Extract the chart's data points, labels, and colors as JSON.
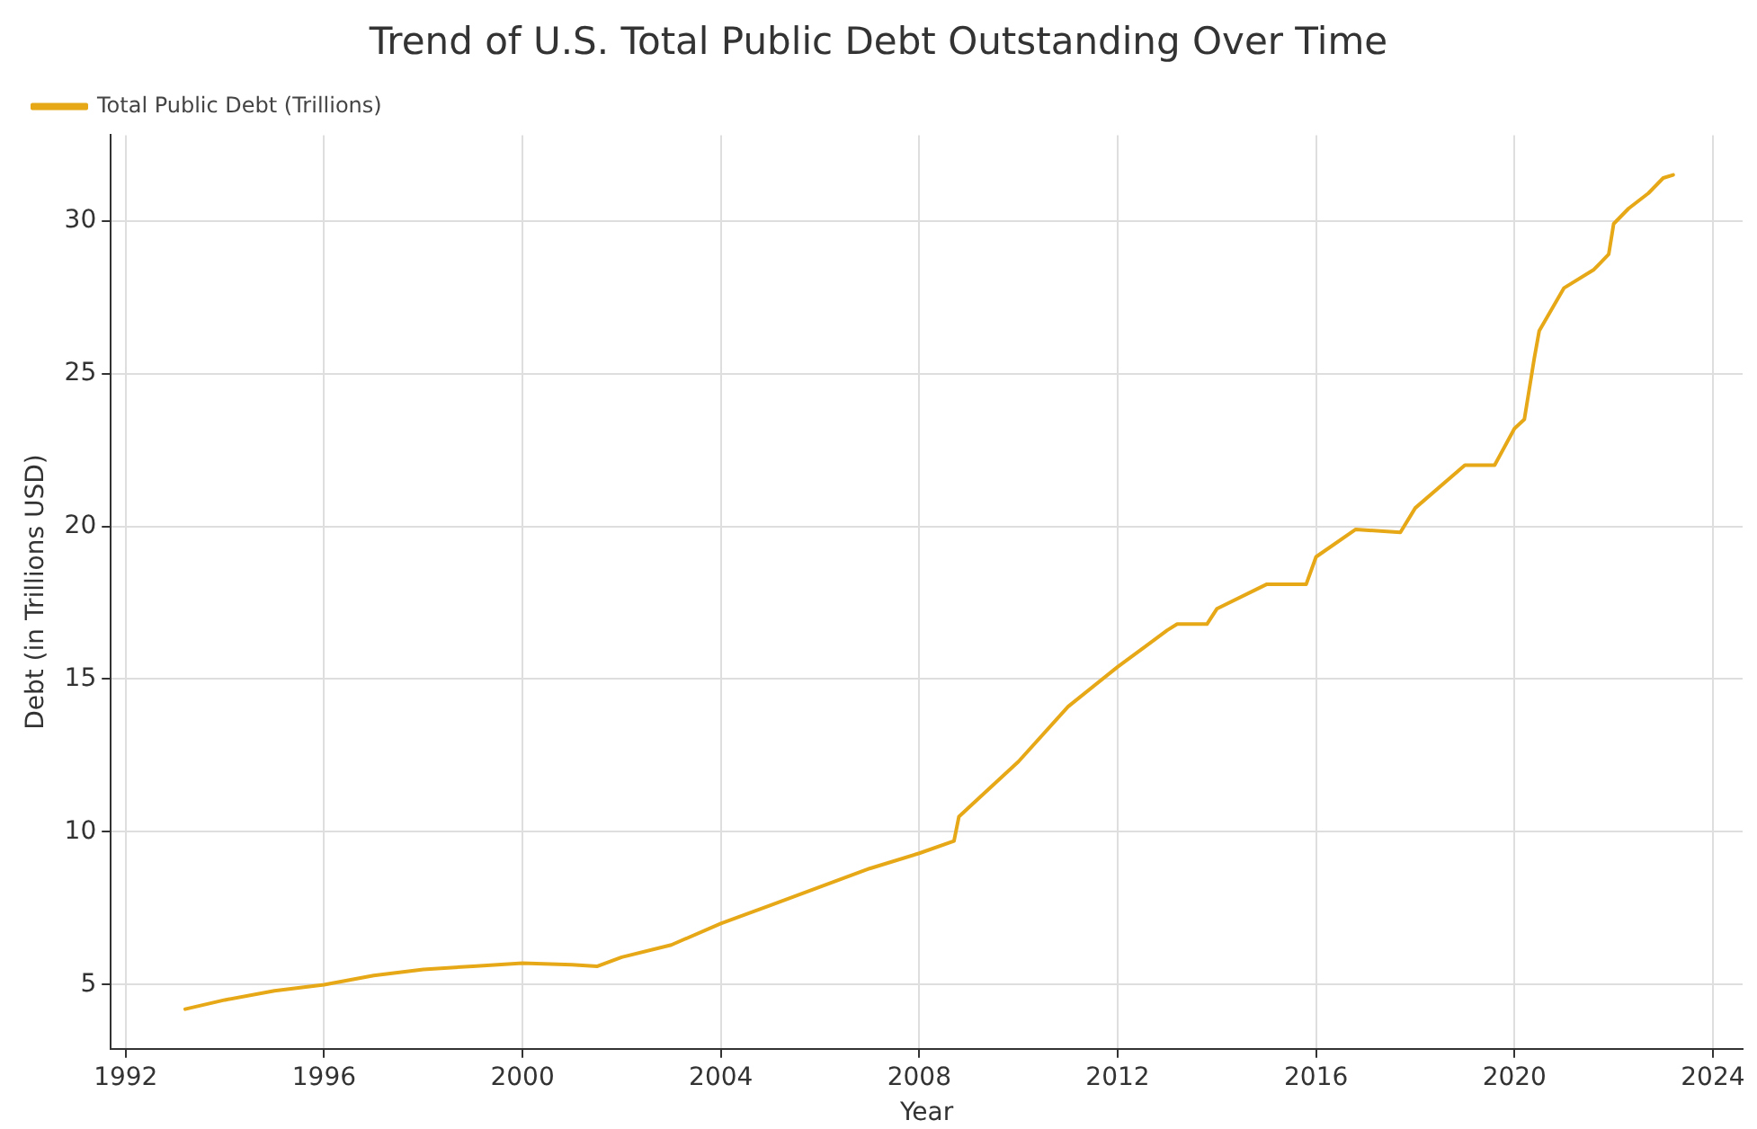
{
  "chart_data": {
    "type": "line",
    "title": "Trend of U.S. Total Public Debt Outstanding Over Time",
    "xlabel": "Year",
    "ylabel": "Debt (in Trillions USD)",
    "x": [
      1993.2,
      1994,
      1995,
      1996,
      1997,
      1998,
      1999,
      2000,
      2001,
      2001.5,
      2002,
      2003,
      2004,
      2005,
      2006,
      2007,
      2008,
      2008.7,
      2008.8,
      2009,
      2010,
      2011,
      2012,
      2013,
      2013.2,
      2013.8,
      2014,
      2015,
      2015.8,
      2016,
      2016.8,
      2017.7,
      2018,
      2019,
      2019.6,
      2020,
      2020.2,
      2020.4,
      2020.5,
      2021,
      2021.6,
      2021.9,
      2022,
      2022.3,
      2022.7,
      2023,
      2023.2
    ],
    "series": [
      {
        "name": "Total Public Debt (Trillions)",
        "color": "#e6a817",
        "values": [
          4.2,
          4.5,
          4.8,
          5.0,
          5.3,
          5.5,
          5.6,
          5.7,
          5.65,
          5.6,
          5.9,
          6.3,
          7.0,
          7.6,
          8.2,
          8.8,
          9.3,
          9.7,
          10.5,
          10.8,
          12.3,
          14.1,
          15.4,
          16.6,
          16.8,
          16.8,
          17.3,
          18.1,
          18.1,
          19.0,
          19.9,
          19.8,
          20.6,
          22.0,
          22.0,
          23.2,
          23.5,
          25.5,
          26.4,
          27.8,
          28.4,
          28.9,
          29.9,
          30.4,
          30.9,
          31.4,
          31.5
        ]
      }
    ],
    "xlim": [
      1991.7,
      2024.6
    ],
    "xticks": [
      1992,
      1996,
      2000,
      2004,
      2008,
      2012,
      2016,
      2020,
      2024
    ],
    "ylim": [
      2.9,
      32.8
    ],
    "yticks": [
      5,
      10,
      15,
      20,
      25,
      30
    ],
    "grid": true,
    "legend": "top left",
    "marker": "none",
    "line_style": "solid"
  }
}
